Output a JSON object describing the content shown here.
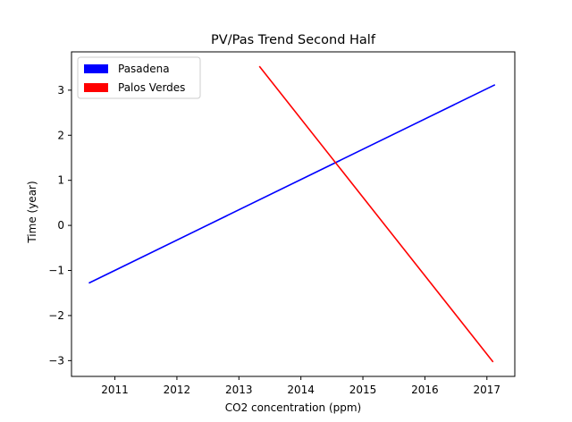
{
  "chart_data": {
    "type": "line",
    "title": "PV/Pas Trend Second Half",
    "xlabel": "CO2 concentration (ppm)",
    "ylabel": "Time (year)",
    "xlim": [
      2010.3,
      2017.45
    ],
    "ylim": [
      -3.35,
      3.85
    ],
    "xticks": [
      2011,
      2012,
      2013,
      2014,
      2015,
      2016,
      2017
    ],
    "yticks": [
      -3,
      -2,
      -1,
      0,
      1,
      2,
      3
    ],
    "ytick_labels": [
      "−3",
      "−2",
      "−1",
      "0",
      "1",
      "2",
      "3"
    ],
    "grid": false,
    "legend_position": "upper-left",
    "series": [
      {
        "name": "Pasadena",
        "color": "#0000ff",
        "x": [
          2010.58,
          2017.13
        ],
        "y": [
          -1.28,
          3.12
        ]
      },
      {
        "name": "Palos Verdes",
        "color": "#ff0000",
        "x": [
          2013.33,
          2017.1
        ],
        "y": [
          3.53,
          -3.03
        ]
      }
    ]
  }
}
